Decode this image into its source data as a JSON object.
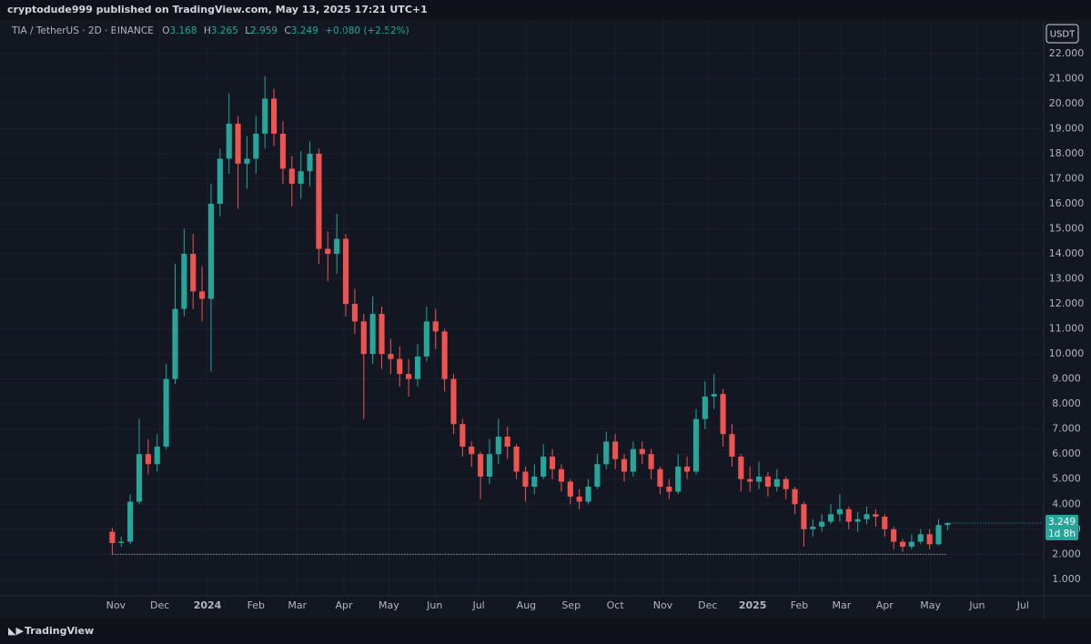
{
  "publisher": "cryptodude999 published on TradingView.com, May 13, 2025 17:21 UTC+1",
  "brand": "TradingView",
  "currency": "USDT",
  "countdown": "1d 8h",
  "ohlc_labels": [
    "O",
    "H",
    "L",
    "C"
  ],
  "change": "+0.080 (+2.52%)",
  "chart_data": {
    "type": "candlestick",
    "title": "TIA / TetherUS · 2D · BINANCE",
    "up_color": "#26a69a",
    "down_color": "#ef5350",
    "open": [
      2.9,
      2.45,
      2.5,
      4.1,
      6.0,
      5.6,
      6.3,
      9.0,
      11.8,
      14.0,
      12.5,
      12.2,
      16.0,
      17.8,
      19.2,
      17.6,
      17.8,
      18.8,
      20.2,
      18.8,
      17.4,
      16.8,
      17.3,
      18.0,
      14.2,
      14.0,
      14.6,
      12.0,
      11.3,
      10.0,
      11.6,
      10.0,
      9.8,
      9.2,
      9.0,
      9.9,
      11.3,
      10.9,
      9.0,
      7.2,
      6.3,
      6.0,
      5.1,
      6.0,
      6.7,
      6.3,
      5.3,
      4.7,
      5.1,
      5.9,
      5.4,
      4.9,
      4.3,
      4.1,
      4.7,
      5.6,
      6.5,
      5.8,
      5.3,
      6.2,
      6.0,
      5.4,
      4.7,
      4.5,
      5.5,
      5.3,
      7.4,
      8.3,
      8.4,
      6.8,
      5.9,
      5.0,
      4.9,
      5.1,
      4.7,
      5.0,
      4.6,
      4.0,
      3.0,
      3.1,
      3.3,
      3.6,
      3.8,
      3.3,
      3.4,
      3.6,
      3.5,
      3.0,
      2.5,
      2.3,
      2.5,
      2.8,
      2.4,
      3.168
    ],
    "high": [
      3.05,
      2.7,
      4.4,
      7.4,
      6.6,
      6.8,
      9.6,
      13.6,
      15.0,
      14.8,
      13.5,
      16.8,
      18.2,
      20.4,
      19.5,
      18.7,
      19.5,
      21.1,
      20.6,
      19.3,
      17.9,
      18.1,
      18.5,
      18.2,
      14.9,
      15.6,
      14.8,
      12.6,
      11.6,
      12.3,
      11.9,
      10.6,
      10.3,
      9.8,
      10.4,
      11.9,
      11.8,
      11.0,
      9.2,
      7.4,
      6.5,
      6.1,
      6.6,
      7.4,
      7.1,
      6.4,
      5.5,
      5.6,
      6.4,
      6.2,
      5.6,
      5.0,
      4.6,
      5.0,
      6.0,
      6.9,
      6.8,
      6.0,
      6.5,
      6.5,
      6.2,
      5.5,
      5.0,
      6.0,
      5.9,
      7.8,
      8.9,
      9.2,
      8.6,
      7.2,
      6.0,
      5.5,
      5.7,
      5.3,
      5.4,
      5.1,
      4.7,
      4.1,
      3.4,
      3.6,
      4.0,
      4.4,
      3.9,
      3.7,
      3.9,
      3.8,
      3.6,
      3.1,
      2.6,
      2.8,
      3.0,
      3.0,
      3.4,
      3.265
    ],
    "low": [
      2.0,
      2.3,
      2.4,
      4.0,
      5.2,
      5.3,
      6.2,
      8.8,
      11.5,
      11.8,
      11.3,
      9.3,
      15.5,
      17.2,
      15.8,
      16.6,
      17.2,
      18.2,
      18.3,
      16.8,
      15.9,
      16.2,
      16.7,
      13.6,
      12.9,
      13.2,
      11.5,
      10.8,
      7.4,
      9.6,
      9.4,
      9.2,
      8.7,
      8.3,
      8.7,
      9.7,
      10.2,
      8.5,
      6.8,
      5.9,
      5.5,
      4.2,
      4.8,
      5.6,
      5.8,
      5.0,
      4.1,
      4.4,
      5.0,
      5.0,
      4.5,
      4.0,
      3.8,
      4.0,
      4.6,
      5.4,
      5.4,
      4.9,
      5.1,
      5.6,
      5.0,
      4.4,
      4.2,
      4.4,
      5.0,
      5.2,
      7.0,
      7.8,
      6.3,
      5.5,
      4.5,
      4.5,
      4.6,
      4.3,
      4.5,
      4.2,
      3.6,
      2.3,
      2.7,
      2.9,
      3.2,
      3.3,
      3.0,
      2.9,
      3.2,
      3.1,
      2.7,
      2.2,
      2.1,
      2.2,
      2.4,
      2.2,
      2.35,
      2.959
    ],
    "close": [
      2.45,
      2.5,
      4.1,
      6.0,
      5.6,
      6.3,
      9.0,
      11.8,
      14.0,
      12.5,
      12.2,
      16.0,
      17.8,
      19.2,
      17.6,
      17.8,
      18.8,
      20.2,
      18.8,
      17.4,
      16.8,
      17.3,
      18.0,
      14.2,
      14.0,
      14.6,
      12.0,
      11.3,
      10.0,
      11.6,
      10.0,
      9.8,
      9.2,
      9.0,
      9.9,
      11.3,
      10.9,
      9.0,
      7.2,
      6.3,
      6.0,
      5.1,
      6.0,
      6.7,
      6.3,
      5.3,
      4.7,
      5.1,
      5.9,
      5.4,
      4.9,
      4.3,
      4.1,
      4.7,
      5.6,
      6.5,
      5.8,
      5.3,
      6.2,
      6.0,
      5.4,
      4.7,
      4.5,
      5.5,
      5.3,
      7.4,
      8.3,
      8.4,
      6.8,
      5.9,
      5.0,
      4.9,
      5.1,
      4.7,
      5.0,
      4.6,
      4.0,
      3.0,
      3.1,
      3.3,
      3.6,
      3.8,
      3.3,
      3.4,
      3.6,
      3.5,
      3.0,
      2.5,
      2.3,
      2.5,
      2.8,
      2.4,
      3.168,
      3.249
    ],
    "hline": 2.0,
    "xlim": [
      -12.5,
      103.5
    ],
    "xticks": [
      {
        "value": 0.4,
        "label": "Nov"
      },
      {
        "value": 5.3,
        "label": "Dec"
      },
      {
        "value": 10.6,
        "label": "2024"
      },
      {
        "value": 16.0,
        "label": "Feb"
      },
      {
        "value": 20.6,
        "label": "Mar"
      },
      {
        "value": 25.8,
        "label": "Apr"
      },
      {
        "value": 30.8,
        "label": "May"
      },
      {
        "value": 35.9,
        "label": "Jun"
      },
      {
        "value": 40.8,
        "label": "Jul"
      },
      {
        "value": 46.1,
        "label": "Aug"
      },
      {
        "value": 51.1,
        "label": "Sep"
      },
      {
        "value": 56.0,
        "label": "Oct"
      },
      {
        "value": 61.3,
        "label": "Nov"
      },
      {
        "value": 66.3,
        "label": "Dec"
      },
      {
        "value": 71.3,
        "label": "2025"
      },
      {
        "value": 76.5,
        "label": "Feb"
      },
      {
        "value": 81.2,
        "label": "Mar"
      },
      {
        "value": 86.0,
        "label": "Apr"
      },
      {
        "value": 91.1,
        "label": "May"
      },
      {
        "value": 96.3,
        "label": "Jun"
      },
      {
        "value": 101.4,
        "label": "Jul"
      }
    ],
    "ylim": [
      0.34,
      23.34
    ],
    "yticks": [
      {
        "value": 1,
        "label": "1.000"
      },
      {
        "value": 2,
        "label": "2.000"
      },
      {
        "value": 3,
        "label": "3.000"
      },
      {
        "value": 4,
        "label": "4.000"
      },
      {
        "value": 5,
        "label": "5.000"
      },
      {
        "value": 6,
        "label": "6.000"
      },
      {
        "value": 7,
        "label": "7.000"
      },
      {
        "value": 8,
        "label": "8.000"
      },
      {
        "value": 9,
        "label": "9.000"
      },
      {
        "value": 10,
        "label": "10.000"
      },
      {
        "value": 11,
        "label": "11.000"
      },
      {
        "value": 12,
        "label": "12.000"
      },
      {
        "value": 13,
        "label": "13.000"
      },
      {
        "value": 14,
        "label": "14.000"
      },
      {
        "value": 15,
        "label": "15.000"
      },
      {
        "value": 16,
        "label": "16.000"
      },
      {
        "value": 17,
        "label": "17.000"
      },
      {
        "value": 18,
        "label": "18.000"
      },
      {
        "value": 19,
        "label": "19.000"
      },
      {
        "value": 20,
        "label": "20.000"
      },
      {
        "value": 21,
        "label": "21.000"
      },
      {
        "value": 22,
        "label": "22.000"
      }
    ]
  }
}
